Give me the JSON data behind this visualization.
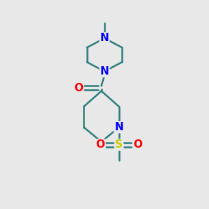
{
  "background_color": "#e8e8e8",
  "bond_color": "#2d7d7d",
  "bond_width": 1.8,
  "atom_colors": {
    "N": "#0000ff",
    "O": "#ff0000",
    "S": "#cccc00"
  },
  "font_size_atom": 11
}
